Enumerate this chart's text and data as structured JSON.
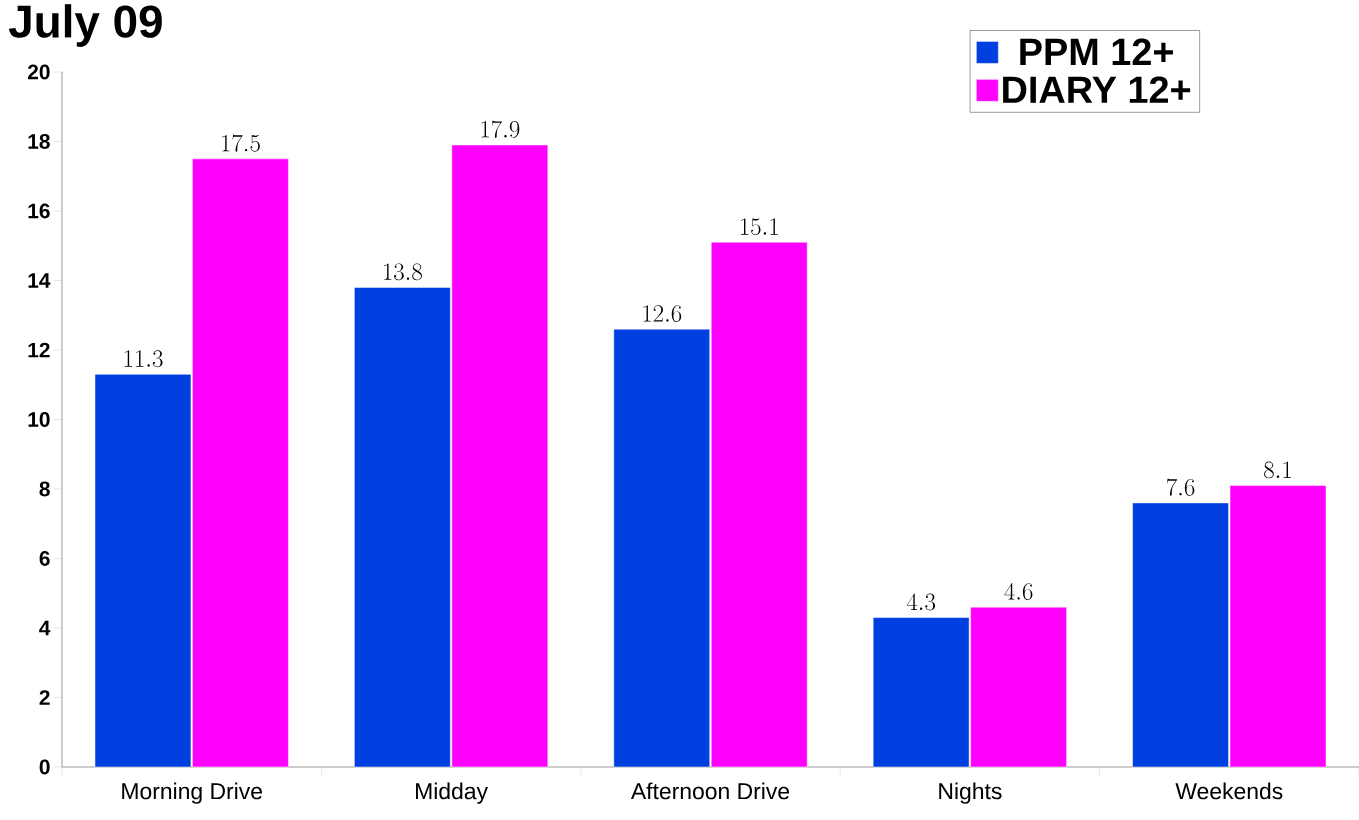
{
  "chart_data": {
    "type": "bar",
    "title": "July 09",
    "categories": [
      "Morning Drive",
      "Midday",
      "Afternoon Drive",
      "Nights",
      "Weekends"
    ],
    "series": [
      {
        "name": "PPM 12+",
        "color": "#0040e0",
        "values": [
          11.3,
          13.8,
          12.6,
          4.3,
          7.6
        ]
      },
      {
        "name": "DIARY 12+",
        "color": "#ff00ff",
        "values": [
          17.5,
          17.9,
          15.1,
          4.6,
          8.1
        ]
      }
    ],
    "ylim": [
      0,
      20
    ],
    "yticks": [
      0,
      2,
      4,
      6,
      8,
      10,
      12,
      14,
      16,
      18,
      20
    ],
    "data_labels": true,
    "grid": false,
    "legend": "top right"
  }
}
